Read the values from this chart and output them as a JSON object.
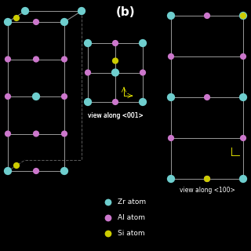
{
  "background_color": "#000000",
  "title": "(b)",
  "title_color": "#ffffff",
  "title_fontsize": 11,
  "atom_colors": {
    "Zr": "#6ECECE",
    "Al": "#CC77CC",
    "Si": "#CCCC00"
  },
  "atom_sizes": {
    "Zr": 55,
    "Al": 35,
    "Si": 35
  },
  "legend_labels": [
    "Zr atom",
    "Al atom",
    "Si atom"
  ],
  "legend_colors": [
    "#6ECECE",
    "#CC77CC",
    "#CCCC00"
  ],
  "line_color": "#999999",
  "line_width": 0.7
}
